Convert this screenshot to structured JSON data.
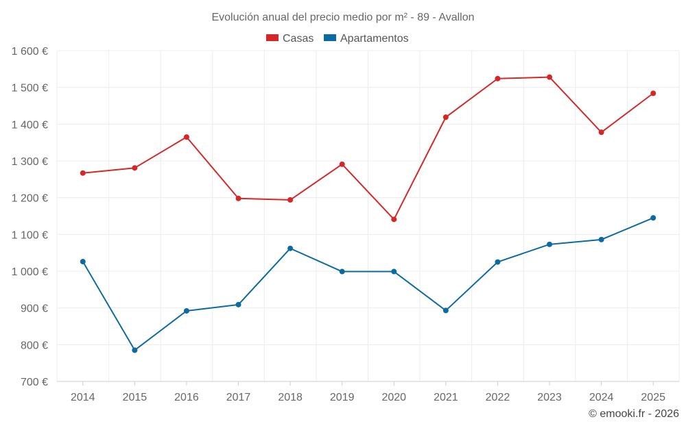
{
  "chart_data": {
    "type": "line",
    "title": "Evolución anual del precio medio por m² - 89 - Avallon",
    "categories": [
      "2014",
      "2015",
      "2016",
      "2017",
      "2018",
      "2019",
      "2020",
      "2021",
      "2022",
      "2023",
      "2024",
      "2025"
    ],
    "series": [
      {
        "name": "Casas",
        "color": "#d62728",
        "values": [
          1267,
          1281,
          1365,
          1198,
          1194,
          1291,
          1141,
          1419,
          1524,
          1528,
          1378,
          1484
        ]
      },
      {
        "name": "Apartamentos",
        "color": "#0b6aa0",
        "values": [
          1026,
          785,
          892,
          909,
          1062,
          999,
          999,
          893,
          1025,
          1073,
          1086,
          1145
        ]
      }
    ],
    "ylim": [
      700,
      1600
    ],
    "yticks": [
      700,
      800,
      900,
      1000,
      1100,
      1200,
      1300,
      1400,
      1500,
      1600
    ],
    "ytick_labels": [
      "700 €",
      "800 €",
      "900 €",
      "1 000 €",
      "1 100 €",
      "1 200 €",
      "1 300 €",
      "1 400 €",
      "1 500 €",
      "1 600 €"
    ],
    "legend_position": "top-center",
    "grid": true
  },
  "credit": "© emooki.fr - 2026"
}
